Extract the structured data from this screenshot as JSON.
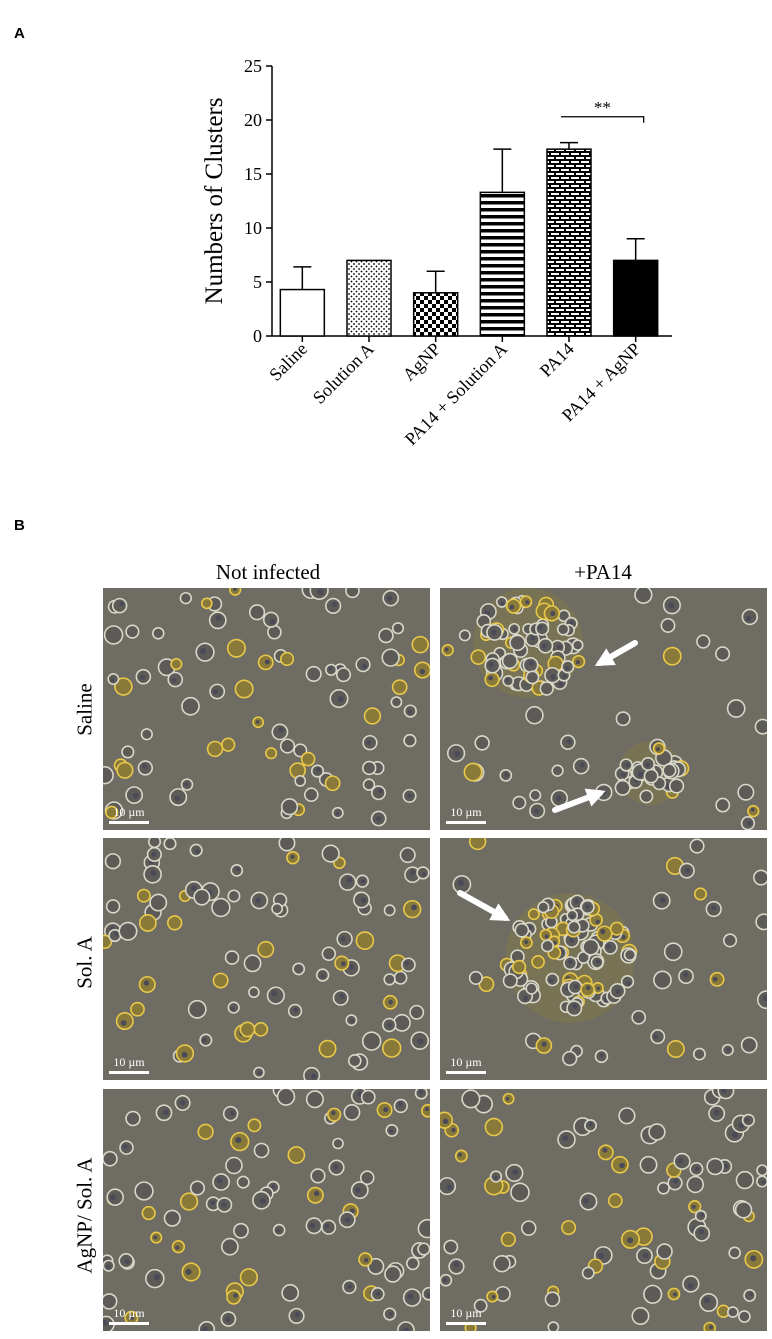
{
  "panel_a_label": "A",
  "panel_b_label": "B",
  "chart_data": {
    "type": "bar",
    "ylabel": "Numbers of Clusters",
    "xlabel": "",
    "ylim": [
      0,
      25
    ],
    "yticks": [
      "0",
      "5",
      "10",
      "15",
      "20",
      "25"
    ],
    "categories": [
      "Saline",
      "Solution A",
      "AgNP",
      "PA14 + Solution A",
      "PA14",
      "PA14 + AgNP"
    ],
    "values": [
      4.3,
      7.0,
      4.0,
      13.3,
      17.3,
      7.0
    ],
    "errors": [
      2.1,
      0.0,
      2.0,
      4.0,
      0.6,
      2.0
    ],
    "patterns": [
      "none",
      "dots",
      "checker",
      "hstripes",
      "brick",
      "solid"
    ],
    "significance": {
      "from": "PA14",
      "to": "PA14 + AgNP",
      "label": "**"
    }
  },
  "micrographs": {
    "column_headers": [
      "Not infected",
      "+PA14"
    ],
    "row_headers": [
      "Saline",
      "Sol. A",
      "AgNP/ Sol. A"
    ],
    "scale_label": "10 µm"
  }
}
